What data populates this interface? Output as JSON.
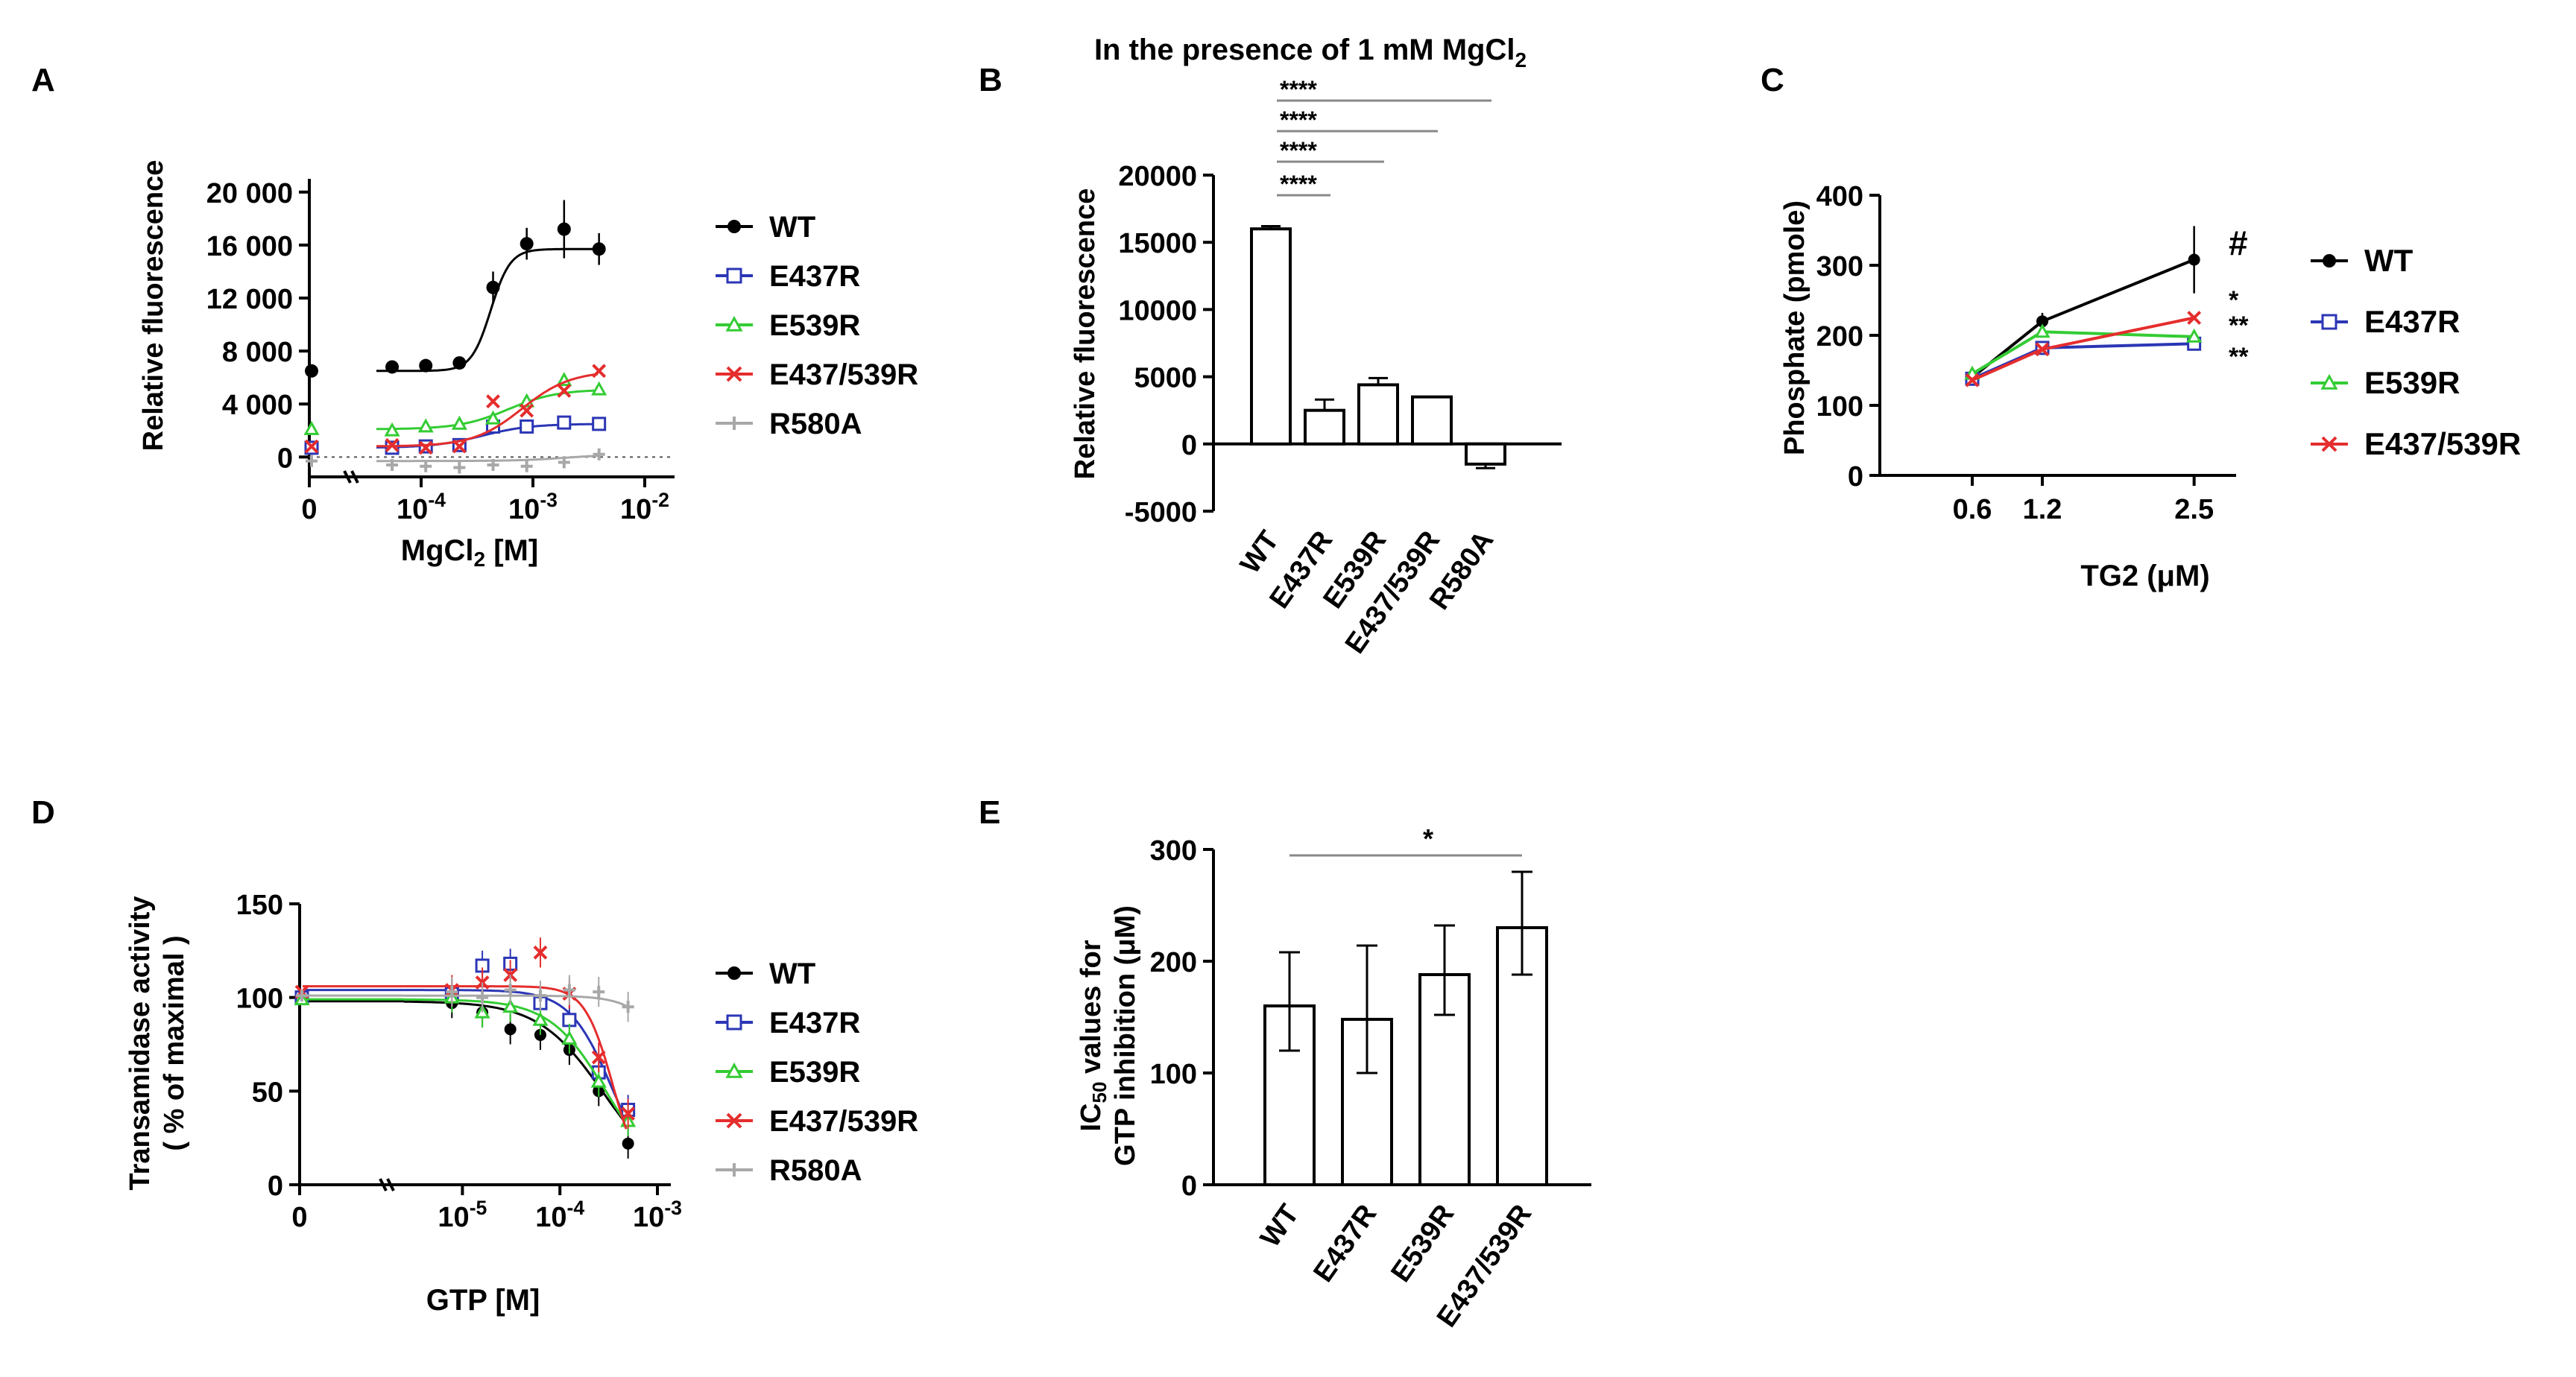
{
  "colors": {
    "WT": "#000000",
    "E437R": "#2b36b5",
    "E539R": "#33cc33",
    "E437/539R": "#e52d2d",
    "R580A": "#a8a8a8",
    "axis": "#000000"
  },
  "chart_data": [
    {
      "id": "A",
      "panel_label": "A",
      "type": "scatter",
      "title": "",
      "xlabel": "MgCl2 [M]",
      "ylabel": "Relative fluorescence",
      "xscale": "log",
      "x_ticks": [
        "0",
        "10-4",
        "10-3",
        "10-2"
      ],
      "y_ticks": [
        "0",
        "4 000",
        "8 000",
        "12 000",
        "16 000",
        "20 000"
      ],
      "ylim": [
        -1500,
        21000
      ],
      "legend_position": "right",
      "series": [
        {
          "name": "WT",
          "marker": "filled-circle",
          "x": [
            0,
            5.5e-05,
            0.00011,
            0.00022,
            0.00044,
            0.00088,
            0.0019,
            0.0039
          ],
          "y": [
            6500,
            6800,
            6900,
            7100,
            12800,
            16100,
            17200,
            15700
          ]
        },
        {
          "name": "E437R",
          "marker": "open-square",
          "x": [
            0,
            5.5e-05,
            0.00011,
            0.00022,
            0.00044,
            0.00088,
            0.0019,
            0.0039
          ],
          "y": [
            700,
            700,
            800,
            900,
            2300,
            2300,
            2600,
            2500
          ]
        },
        {
          "name": "E539R",
          "marker": "open-triangle",
          "x": [
            0,
            5.5e-05,
            0.00011,
            0.00022,
            0.00044,
            0.00088,
            0.0019,
            0.0039
          ],
          "y": [
            2100,
            2000,
            2300,
            2500,
            2900,
            4200,
            5800,
            5100
          ]
        },
        {
          "name": "E437/539R",
          "marker": "x",
          "x": [
            0,
            5.5e-05,
            0.00011,
            0.00022,
            0.00044,
            0.00088,
            0.0019,
            0.0039
          ],
          "y": [
            800,
            900,
            700,
            800,
            4200,
            3500,
            5000,
            6500
          ]
        },
        {
          "name": "R580A",
          "marker": "star",
          "x": [
            0,
            5.5e-05,
            0.00011,
            0.00022,
            0.00044,
            0.00088,
            0.0019,
            0.0039
          ],
          "y": [
            -300,
            -600,
            -700,
            -800,
            -600,
            -700,
            -400,
            200
          ]
        }
      ]
    },
    {
      "id": "B",
      "panel_label": "B",
      "type": "bar",
      "title": "In the presence of 1 mM MgCl2",
      "xlabel": "",
      "ylabel": "Relative fluorescence",
      "categories": [
        "WT",
        "E437R",
        "E539R",
        "E437/539R",
        "R580A"
      ],
      "values": [
        16000,
        2500,
        4400,
        3500,
        -1500
      ],
      "errors": [
        200,
        800,
        500,
        0,
        300
      ],
      "ylim": [
        -5000,
        20000
      ],
      "y_ticks": [
        "-5000",
        "0",
        "5000",
        "10000",
        "15000",
        "20000"
      ],
      "significance": [
        {
          "from": "WT",
          "to": "E437R",
          "label": "****"
        },
        {
          "from": "WT",
          "to": "E539R",
          "label": "****"
        },
        {
          "from": "WT",
          "to": "E437/539R",
          "label": "****"
        },
        {
          "from": "WT",
          "to": "R580A",
          "label": "****"
        }
      ]
    },
    {
      "id": "C",
      "panel_label": "C",
      "type": "line",
      "title": "",
      "xlabel": "TG2 (μM)",
      "ylabel": "Phosphate (pmole)",
      "x": [
        0.6,
        1.2,
        2.5
      ],
      "x_ticks": [
        "0.6",
        "1.2",
        "2.5"
      ],
      "ylim": [
        0,
        400
      ],
      "y_ticks": [
        "0",
        "100",
        "200",
        "300",
        "400"
      ],
      "legend_position": "right",
      "series": [
        {
          "name": "WT",
          "marker": "filled-circle",
          "values": [
            140,
            220,
            308
          ],
          "sig": "#"
        },
        {
          "name": "E437R",
          "marker": "open-square",
          "values": [
            138,
            182,
            188
          ],
          "sig": "**"
        },
        {
          "name": "E539R",
          "marker": "open-triangle",
          "values": [
            145,
            205,
            198
          ],
          "sig": "**"
        },
        {
          "name": "E437/539R",
          "marker": "x",
          "values": [
            136,
            180,
            225
          ],
          "sig": "*"
        }
      ]
    },
    {
      "id": "D",
      "panel_label": "D",
      "type": "scatter",
      "title": "",
      "xlabel": "GTP [M]",
      "ylabel": "Transamidase activity\n( % of maximal )",
      "ylabel_lines": [
        "Transamidase activity",
        "( % of maximal )"
      ],
      "xscale": "log",
      "x_ticks": [
        "0",
        "10-5",
        "10-4",
        "10-3"
      ],
      "ylim": [
        0,
        150
      ],
      "y_ticks": [
        "0",
        "50",
        "100",
        "150"
      ],
      "legend_position": "right",
      "series": [
        {
          "name": "WT",
          "marker": "filled-circle",
          "x": [
            0,
            7.8e-06,
            1.6e-05,
            3.1e-05,
            6.3e-05,
            0.000125,
            0.00025,
            0.0005
          ],
          "y": [
            100,
            97,
            92,
            83,
            80,
            72,
            50,
            22
          ]
        },
        {
          "name": "E437R",
          "marker": "open-square",
          "x": [
            0,
            7.8e-06,
            1.6e-05,
            3.1e-05,
            6.3e-05,
            0.000125,
            0.00025,
            0.0005
          ],
          "y": [
            100,
            102,
            117,
            118,
            97,
            88,
            60,
            40
          ]
        },
        {
          "name": "E539R",
          "marker": "open-triangle",
          "x": [
            0,
            7.8e-06,
            1.6e-05,
            3.1e-05,
            6.3e-05,
            0.000125,
            0.00025,
            0.0005
          ],
          "y": [
            99,
            100,
            92,
            95,
            88,
            78,
            55,
            34
          ]
        },
        {
          "name": "E437/539R",
          "marker": "x",
          "x": [
            0,
            7.8e-06,
            1.6e-05,
            3.1e-05,
            6.3e-05,
            0.000125,
            0.00025,
            0.0005
          ],
          "y": [
            103,
            104,
            108,
            112,
            124,
            102,
            68,
            38
          ]
        },
        {
          "name": "R580A",
          "marker": "star",
          "x": [
            0,
            7.8e-06,
            1.6e-05,
            3.1e-05,
            6.3e-05,
            0.000125,
            0.00025,
            0.0005
          ],
          "y": [
            101,
            103,
            100,
            104,
            101,
            104,
            103,
            95
          ]
        }
      ]
    },
    {
      "id": "E",
      "panel_label": "E",
      "type": "bar",
      "title": "",
      "xlabel": "",
      "ylabel": "IC50 values for GTP inhibition (μM)",
      "ylabel_lines": [
        "IC50 values for",
        "GTP inhibition (μM)"
      ],
      "categories": [
        "WT",
        "E437R",
        "E539R",
        "E437/539R"
      ],
      "values": [
        160,
        148,
        188,
        230
      ],
      "err_low": [
        120,
        100,
        152,
        188
      ],
      "err_high": [
        208,
        214,
        232,
        280
      ],
      "ylim": [
        0,
        300
      ],
      "y_ticks": [
        "0",
        "100",
        "200",
        "300"
      ],
      "significance": [
        {
          "from": "WT",
          "to": "E437/539R",
          "label": "*"
        }
      ]
    }
  ]
}
